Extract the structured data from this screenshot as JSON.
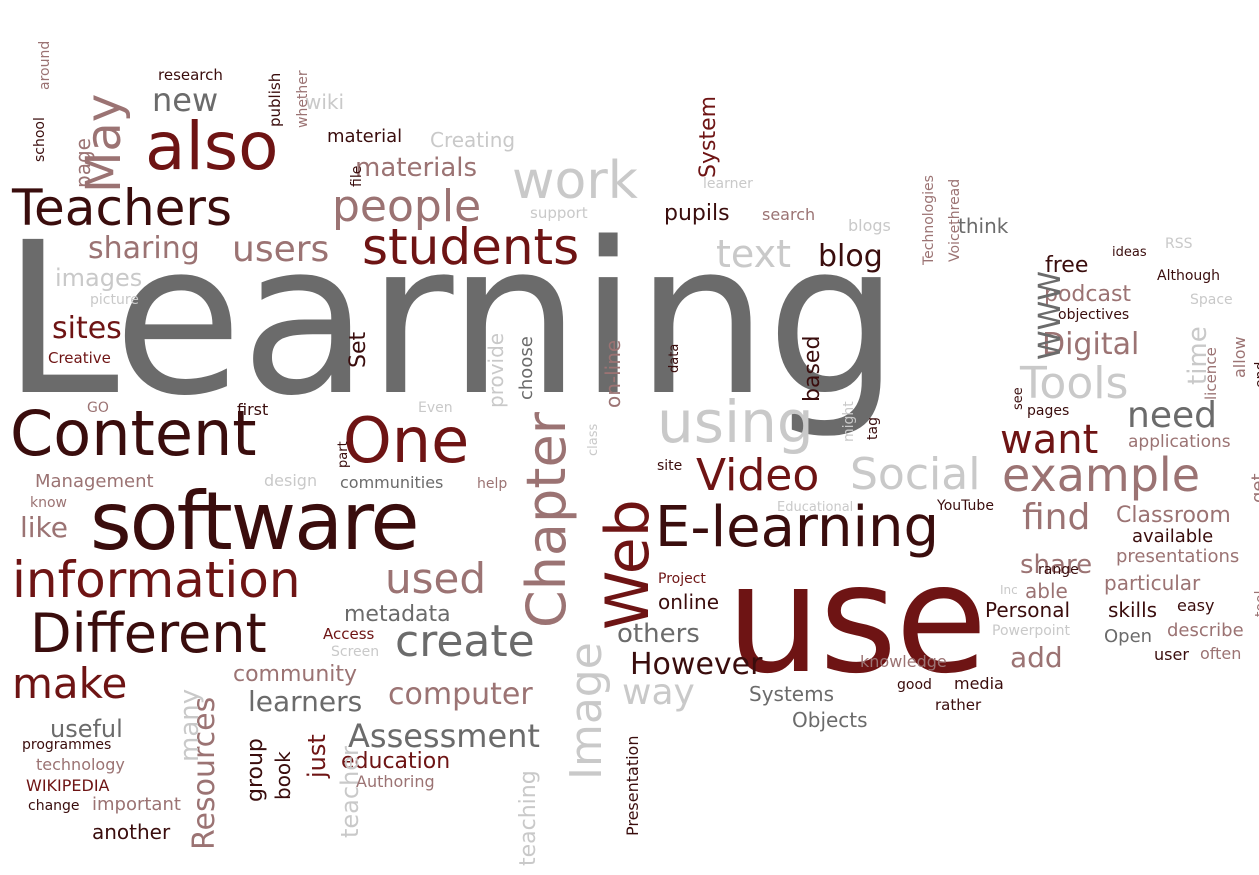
{
  "palette": {
    "dark_maroon": "#3a0d0d",
    "maroon": "#6e1414",
    "dusty_rose": "#9b7373",
    "gray": "#6b6b6b",
    "light_gray": "#c9c9c9"
  },
  "words": [
    "Learning",
    "use",
    "software",
    "Content",
    "One",
    "Web",
    "E-learning",
    "students",
    "also",
    "Teachers",
    "information",
    "Different",
    "make",
    "Chapter",
    "Video",
    "using",
    "example",
    "Social",
    "work",
    "people",
    "May",
    "used",
    "create",
    "computer",
    "Assessment",
    "Image",
    "Resources",
    "However",
    "need",
    "want",
    "find",
    "users",
    "sharing",
    "Tools",
    "Digital",
    "text",
    "blog",
    "sites",
    "new",
    "materials",
    "pupils",
    "free",
    "podcast",
    "share",
    "Classroom",
    "presentations",
    "particular",
    "skills",
    "describe",
    "often",
    "Personal",
    "able",
    "add",
    "others",
    "online",
    "way",
    "community",
    "learners",
    "metadata",
    "education",
    "useful",
    "programmes",
    "technology",
    "WIKIPEDIA",
    "important",
    "change",
    "another",
    "teacher",
    "teaching",
    "just",
    "book",
    "group",
    "many",
    "Presentation",
    "Authoring",
    "Access",
    "Screen",
    "Systems",
    "Objects",
    "rather",
    "good",
    "media",
    "knowledge",
    "Open",
    "user",
    "easy",
    "tool",
    "Powerpoint",
    "Inc",
    "range",
    "available",
    "YouTube",
    "Educational",
    "site",
    "Project",
    "communities",
    "help",
    "design",
    "Management",
    "know",
    "like",
    "GO",
    "first",
    "part",
    "Even",
    "provide",
    "choose",
    "class",
    "on-line",
    "based",
    "data",
    "might",
    "tag",
    "see",
    "pages",
    "applications",
    "get",
    "end",
    "allow",
    "licence",
    "time",
    "Space",
    "objectives",
    "Although",
    "ideas",
    "RSS",
    "WWW",
    "think",
    "Voicethread",
    "Technologies",
    "blogs",
    "search",
    "learner",
    "System",
    "support",
    "wiki",
    "Creating",
    "material",
    "file",
    "whether",
    "publish",
    "research",
    "page",
    "school",
    "around",
    "images",
    "picture",
    "Creative",
    "Set"
  ]
}
